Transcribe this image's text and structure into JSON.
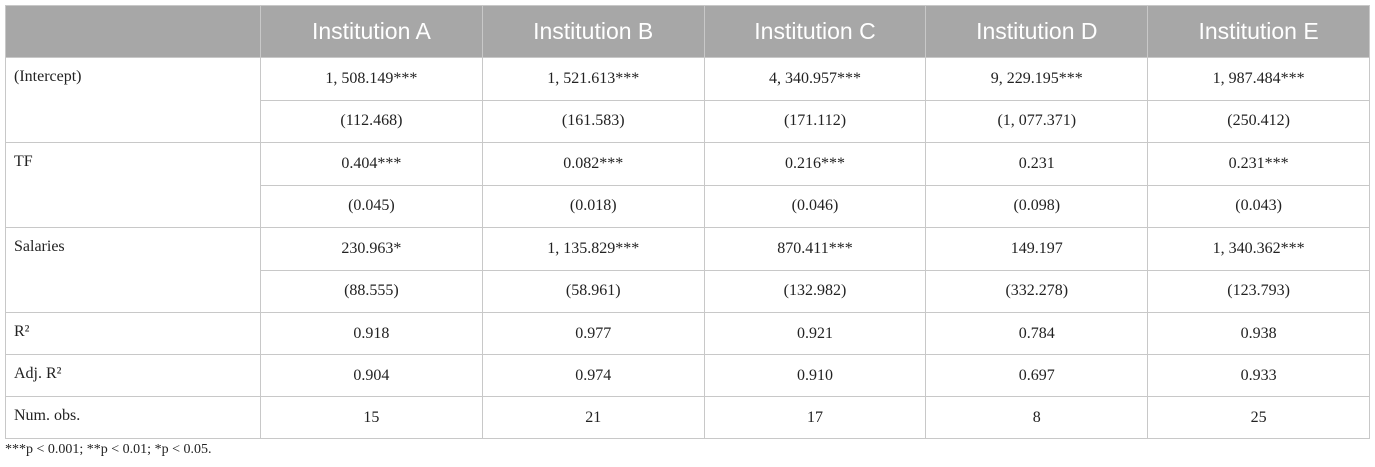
{
  "table": {
    "header": [
      "Institution A",
      "Institution B",
      "Institution C",
      "Institution D",
      "Institution E"
    ],
    "rows": [
      {
        "label": "(Intercept)",
        "lines": [
          [
            "1, 508.149***",
            "1, 521.613***",
            "4, 340.957***",
            "9, 229.195***",
            "1, 987.484***"
          ],
          [
            "(112.468)",
            "(161.583)",
            "(171.112)",
            "(1, 077.371)",
            "(250.412)"
          ]
        ]
      },
      {
        "label": "TF",
        "lines": [
          [
            "0.404***",
            "0.082***",
            "0.216***",
            "0.231",
            "0.231***"
          ],
          [
            "(0.045)",
            "(0.018)",
            "(0.046)",
            "(0.098)",
            "(0.043)"
          ]
        ]
      },
      {
        "label": "Salaries",
        "lines": [
          [
            "230.963*",
            "1, 135.829***",
            "870.411***",
            "149.197",
            "1, 340.362***"
          ],
          [
            "(88.555)",
            "(58.961)",
            "(132.982)",
            "(332.278)",
            "(123.793)"
          ]
        ]
      },
      {
        "label": "R²",
        "lines": [
          [
            "0.918",
            "0.977",
            "0.921",
            "0.784",
            "0.938"
          ]
        ]
      },
      {
        "label": "Adj. R²",
        "lines": [
          [
            "0.904",
            "0.974",
            "0.910",
            "0.697",
            "0.933"
          ]
        ]
      },
      {
        "label": "Num. obs.",
        "lines": [
          [
            "15",
            "21",
            "17",
            "8",
            "25"
          ]
        ]
      }
    ],
    "footnote": "***p < 0.001; **p < 0.01; *p < 0.05."
  }
}
